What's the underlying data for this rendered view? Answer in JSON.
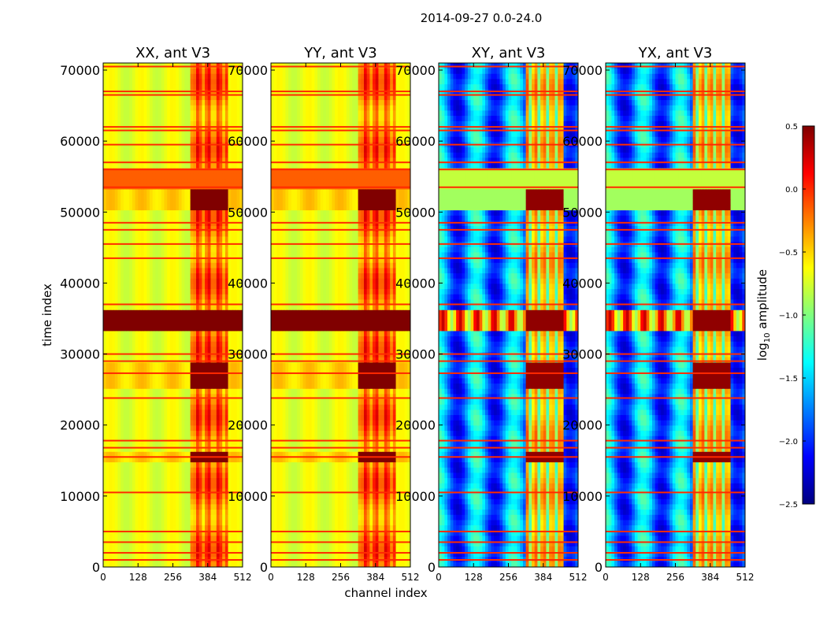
{
  "chart_data": {
    "type": "heatmap",
    "title": "2014-09-27 0.0-24.0",
    "xlabel": "channel index",
    "ylabel": "time index",
    "xlim": [
      0,
      512
    ],
    "ylim": [
      0,
      71000
    ],
    "x_ticks": [
      0,
      128,
      256,
      384,
      512
    ],
    "y_ticks": [
      0,
      10000,
      20000,
      30000,
      40000,
      50000,
      60000,
      70000
    ],
    "panels": [
      {
        "title": "XX, ant V3",
        "scheme": "auto"
      },
      {
        "title": "YY, ant V3",
        "scheme": "auto"
      },
      {
        "title": "XY, ant V3",
        "scheme": "cross"
      },
      {
        "title": "YX, ant V3",
        "scheme": "cross"
      }
    ],
    "colorbar": {
      "label_prefix": "log",
      "label_sub": "10",
      "label_suffix": " amplitude",
      "colormap": "jet",
      "range": [
        -2.5,
        0.5
      ],
      "ticks": [
        0.5,
        0.0,
        -0.5,
        -1.0,
        -1.5,
        -2.0,
        -2.5
      ],
      "tick_labels": [
        "0.5",
        "0.0",
        "−0.5",
        "−1.0",
        "−1.5",
        "−2.0",
        "−2.5"
      ]
    },
    "regions": {
      "rfi_channel_range": [
        325,
        460
      ],
      "high_amplitude_time_bands": [
        [
          33000,
          36000
        ],
        [
          25500,
          29000
        ],
        [
          50500,
          53000
        ],
        [
          14500,
          16500
        ]
      ],
      "flagged_time_rows": [
        1000,
        2000,
        3500,
        5000,
        10500,
        15500,
        16800,
        17800,
        23800,
        27300,
        29000,
        30000,
        37000,
        43500,
        45500,
        47500,
        48500,
        53500,
        56000,
        57000,
        59500,
        61500,
        62000,
        66500,
        67000,
        70500
      ]
    }
  }
}
